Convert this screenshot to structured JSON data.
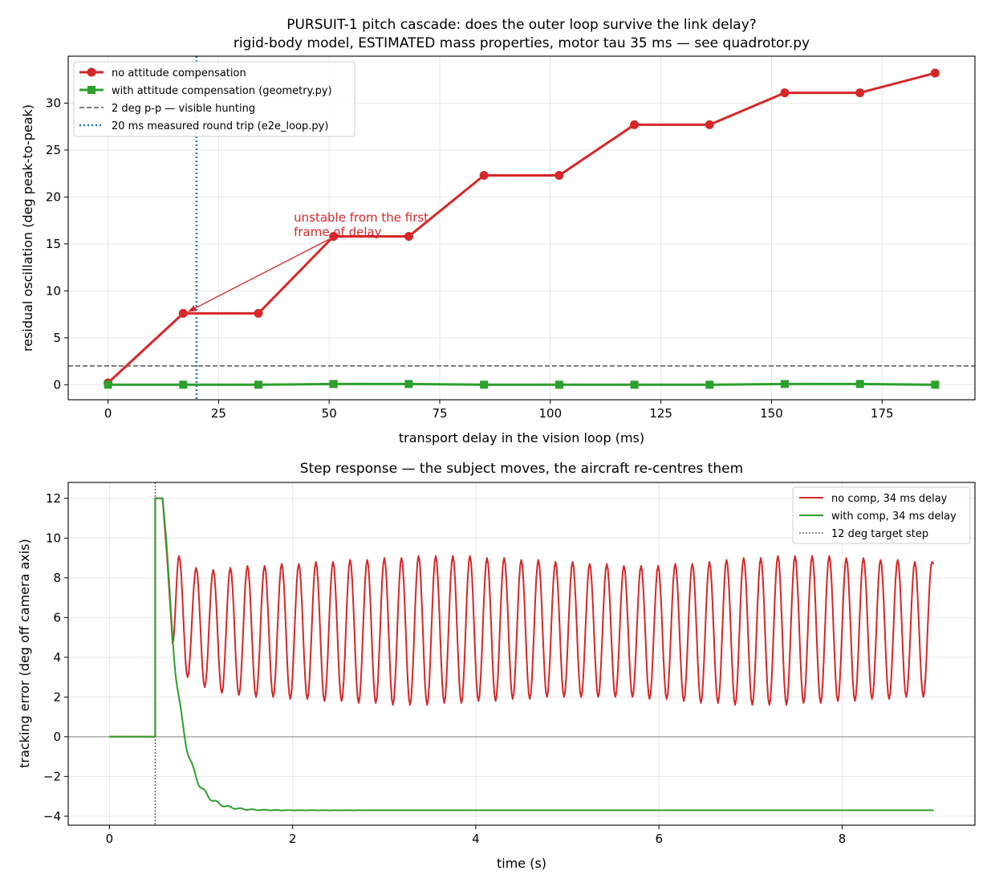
{
  "chart_data": [
    {
      "type": "line",
      "title": "PURSUIT-1 pitch cascade: does the outer loop survive the link delay?",
      "subtitle": "rigid-body model, ESTIMATED mass properties, motor tau 35 ms — see quadrotor.py",
      "xlabel": "transport delay in the vision loop (ms)",
      "ylabel": "residual oscillation (deg peak-to-peak)",
      "xlim": [
        -9,
        196
      ],
      "ylim": [
        -1.6,
        35.0
      ],
      "xticks": [
        0,
        25,
        50,
        75,
        100,
        125,
        150,
        175
      ],
      "yticks": [
        0,
        5,
        10,
        15,
        20,
        25,
        30
      ],
      "grid": true,
      "legend_position": "top-left",
      "x": [
        0,
        17,
        34,
        51,
        68,
        85,
        102,
        119,
        136,
        153,
        170,
        187
      ],
      "series": [
        {
          "name": "no attitude compensation",
          "color": "#d62728",
          "marker": "circle",
          "values": [
            0.2,
            7.6,
            7.6,
            15.8,
            15.8,
            22.3,
            22.3,
            27.7,
            27.7,
            31.1,
            31.1,
            33.2
          ]
        },
        {
          "name": "with attitude compensation (geometry.py)",
          "color": "#2ca02c",
          "marker": "square",
          "values": [
            0.0,
            0.0,
            0.0,
            0.08,
            0.08,
            0.0,
            0.0,
            0.0,
            0.0,
            0.08,
            0.08,
            0.0
          ]
        }
      ],
      "reference_lines": [
        {
          "orientation": "horizontal",
          "value": 2,
          "style": "dashed",
          "color": "#555555",
          "name": "2 deg p-p — visible hunting"
        },
        {
          "orientation": "vertical",
          "value": 20,
          "style": "dotted",
          "color": "#1f77b4",
          "name": "20 ms measured round trip (e2e_loop.py)"
        }
      ],
      "annotation": {
        "text": [
          "unstable from the first",
          "frame of delay"
        ],
        "text_at": [
          42,
          16.7
        ],
        "arrow_to": [
          17,
          7.6
        ],
        "color": "#d62728"
      }
    },
    {
      "type": "line",
      "title": "Step response — the subject moves, the aircraft re-centres them",
      "xlabel": "time (s)",
      "ylabel": "tracking error (deg off camera axis)",
      "xlim": [
        -0.45,
        9.45
      ],
      "ylim": [
        -4.45,
        12.8
      ],
      "xticks": [
        0,
        2,
        4,
        6,
        8
      ],
      "yticks": [
        -4,
        -2,
        0,
        2,
        4,
        6,
        8,
        10,
        12
      ],
      "grid": true,
      "legend_position": "top-right",
      "x_range": [
        0,
        9
      ],
      "step_time": 0.5,
      "step_size": 12,
      "zero_line": true,
      "series": [
        {
          "name": "no comp, 34 ms delay",
          "color": "#d62728",
          "peaks": [
            9.1,
            8.5,
            8.4,
            8.5,
            8.6,
            8.6,
            8.7,
            8.7,
            8.8,
            8.8,
            8.9,
            8.9,
            9.0,
            9.0,
            9.1,
            9.1,
            9.1,
            9.1,
            9.0,
            9.0,
            8.9,
            8.9,
            8.8,
            8.8,
            8.7,
            8.7,
            8.6,
            8.6,
            8.6,
            8.7,
            8.7,
            8.8,
            8.9,
            9.0,
            9.0,
            9.1,
            9.1,
            9.1,
            9.1,
            9.0,
            9.0,
            8.9,
            8.9,
            8.8,
            8.8
          ],
          "troughs": [
            3.0,
            2.5,
            2.2,
            2.1,
            2.0,
            2.0,
            1.9,
            1.9,
            1.8,
            1.8,
            1.7,
            1.7,
            1.6,
            1.6,
            1.6,
            1.7,
            1.7,
            1.8,
            1.8,
            1.9,
            1.9,
            2.0,
            2.0,
            2.0,
            2.0,
            2.0,
            2.0,
            1.9,
            1.9,
            1.8,
            1.7,
            1.7,
            1.6,
            1.6,
            1.6,
            1.6,
            1.7,
            1.7,
            1.8,
            1.8,
            1.9,
            1.9,
            2.0,
            2.0
          ],
          "final_value": 8.7
        },
        {
          "name": "with comp, 34 ms delay",
          "color": "#2ca02c",
          "final_value": -3.7
        }
      ],
      "reference_lines": [
        {
          "orientation": "vertical",
          "value": 0.5,
          "style": "dotted",
          "color": "#555555",
          "name": "12 deg target step"
        }
      ]
    }
  ]
}
